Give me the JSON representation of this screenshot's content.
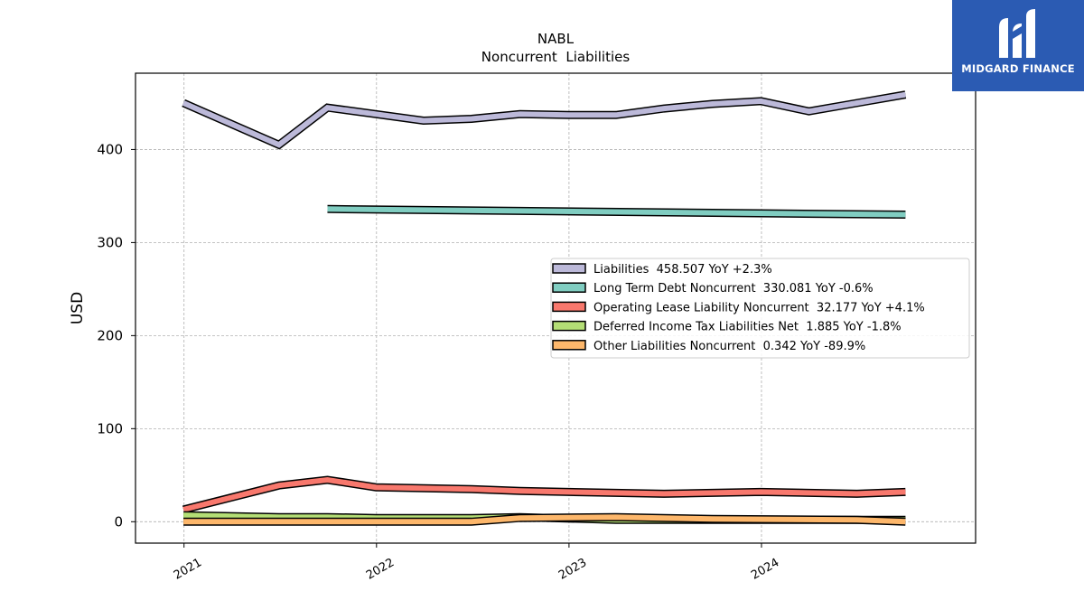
{
  "logo": {
    "text": "MIDGARD FINANCE",
    "icon": "midgard-m-logo-icon",
    "background": "#2b5bb3"
  },
  "chart_data": {
    "type": "line",
    "title": "NABL",
    "subtitle": "Noncurrent  Liabilities",
    "ylabel": "USD",
    "xlabel": "",
    "x_range": [
      "2020-10-01",
      "2025-02-10"
    ],
    "ylim": [
      -23,
      482
    ],
    "yticks": [
      0,
      100,
      200,
      300,
      400
    ],
    "xticks": [
      {
        "label": "2021",
        "date": "2021-01-01"
      },
      {
        "label": "2022",
        "date": "2022-01-01"
      },
      {
        "label": "2023",
        "date": "2023-01-01"
      },
      {
        "label": "2024",
        "date": "2024-01-01"
      }
    ],
    "grid": true,
    "legend_position": "center-right",
    "series": [
      {
        "name": "Liabilities",
        "legend": "Liabilities  458.507 YoY +2.3%",
        "color": "#bcb9d9",
        "x": [
          "2020-12-31",
          "2021-06-30",
          "2021-09-30",
          "2021-12-31",
          "2022-03-31",
          "2022-06-30",
          "2022-09-30",
          "2022-12-31",
          "2023-03-31",
          "2023-06-30",
          "2023-09-30",
          "2023-12-31",
          "2024-03-31",
          "2024-06-30",
          "2024-09-30"
        ],
        "y": [
          450,
          405,
          445,
          438,
          431,
          433,
          438,
          437,
          437,
          444,
          449,
          452,
          441,
          450,
          459
        ]
      },
      {
        "name": "Long Term Debt Noncurrent",
        "legend": "Long Term Debt Noncurrent  330.081 YoY -0.6%",
        "color": "#80cdc1",
        "x": [
          "2021-09-30",
          "2022-09-30",
          "2023-09-30",
          "2024-09-30"
        ],
        "y": [
          336,
          334,
          332,
          330
        ]
      },
      {
        "name": "Operating Lease Liability Noncurrent",
        "legend": "Operating Lease Liability Noncurrent  32.177 YoY +4.1%",
        "color": "#f8786d",
        "x": [
          "2020-12-31",
          "2021-06-30",
          "2021-09-30",
          "2021-12-31",
          "2022-06-30",
          "2022-09-30",
          "2023-06-30",
          "2023-09-30",
          "2023-12-31",
          "2024-06-30",
          "2024-09-30"
        ],
        "y": [
          13,
          39,
          45,
          37,
          35,
          33,
          30,
          31,
          32,
          30,
          32
        ]
      },
      {
        "name": "Deferred Income Tax Liabilities Net",
        "legend": "Deferred Income Tax Liabilities Net  1.885 YoY -1.8%",
        "color": "#b4de75",
        "x": [
          "2020-12-31",
          "2021-06-30",
          "2021-09-30",
          "2021-12-31",
          "2022-06-30",
          "2022-09-30",
          "2023-03-31",
          "2023-09-30",
          "2024-09-30"
        ],
        "y": [
          7,
          5,
          5,
          4,
          4,
          5,
          2,
          2,
          2
        ]
      },
      {
        "name": "Other Liabilities Noncurrent",
        "legend": "Other Liabilities Noncurrent  0.342 YoY -89.9%",
        "color": "#fdb76b",
        "x": [
          "2020-12-31",
          "2022-06-30",
          "2022-09-30",
          "2023-03-31",
          "2023-06-30",
          "2023-09-30",
          "2024-06-30",
          "2024-09-30"
        ],
        "y": [
          0,
          0,
          4,
          5,
          4,
          3,
          2,
          0
        ]
      }
    ]
  }
}
